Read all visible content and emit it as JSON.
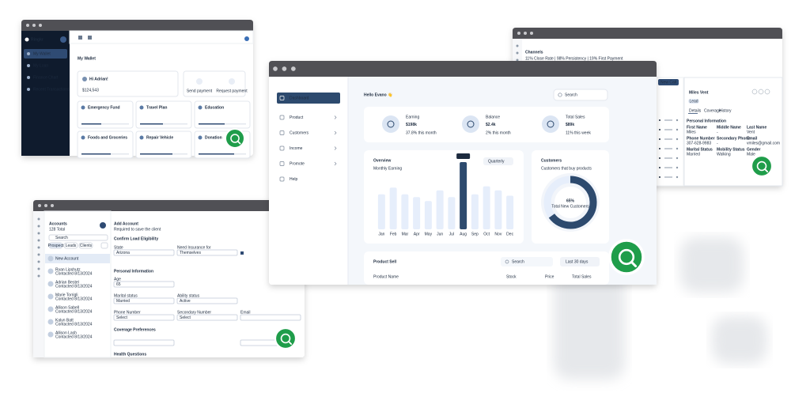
{
  "wallet_window": {
    "brand": "Ringkr",
    "nav": [
      "My Wallet",
      "My Loan",
      "Finance Chart",
      "Recent Transactions"
    ],
    "title": "My Wallet",
    "greeting": "Hi Adrian!",
    "balance": "$124,543",
    "actions": [
      "Send payment",
      "Request payment"
    ],
    "goals": [
      "Emergency Fund",
      "Travel Plan",
      "Education",
      "Foods and Groceries",
      "Repair Vehicle",
      "Donation"
    ]
  },
  "dashboard_window": {
    "nav": [
      "Dashboard",
      "Product",
      "Customers",
      "Income",
      "Promote",
      "Help"
    ],
    "greeting": "Hello Evano 👋",
    "search": "Search",
    "stats": [
      {
        "label": "Earning",
        "value": "$198k",
        "change": "37.8% this month"
      },
      {
        "label": "Balance",
        "value": "$2.4k",
        "change": "2% this month"
      },
      {
        "label": "Total Sales",
        "value": "$89k",
        "change": "11% this week"
      }
    ],
    "overview": {
      "type": "bar",
      "title": "Overview",
      "subtitle": "Monthly Earning",
      "period": "Quarterly",
      "categories": [
        "Jan",
        "Feb",
        "Mar",
        "Apr",
        "May",
        "Jun",
        "Jul",
        "Aug",
        "Sep",
        "Oct",
        "Nov",
        "Dec"
      ],
      "values": [
        2.6,
        3.1,
        2.6,
        2.4,
        2.1,
        2.9,
        2.4,
        5,
        2.6,
        3.2,
        2.9,
        2.5
      ],
      "value_labels": [
        null,
        null,
        null,
        null,
        null,
        null,
        null,
        "$5k",
        null,
        null,
        null,
        null
      ],
      "color": "#e6eefb",
      "highlight_color": "#2d4a6e"
    },
    "customers": {
      "type": "donut",
      "title": "Customers",
      "subtitle": "Customers that buy products",
      "value": 65,
      "value_label": "65%",
      "caption": "Total New Customers",
      "color": "#2d4a6e"
    },
    "product_sell": {
      "title": "Product Sell",
      "search": "Search",
      "period": "Last 30 days",
      "columns": [
        "Product Name",
        "Stock",
        "Price",
        "Total Sales"
      ]
    }
  },
  "accounts_window": {
    "title": "Accounts",
    "subtitle": "128 Total",
    "search": "Search",
    "filters": [
      "Prospect",
      "Leads",
      "Clients"
    ],
    "contacts": [
      {
        "name": "New Account",
        "note": null
      },
      {
        "name": "Ryan Lipshutz",
        "note": "Contacted 8/13/2024"
      },
      {
        "name": "Adrian Bestel",
        "note": "Contacted 8/13/2024"
      },
      {
        "name": "Marie Torrigli",
        "note": "Contacted 8/13/2024"
      },
      {
        "name": "Allison Sabell",
        "note": "Contacted 8/13/2024"
      },
      {
        "name": "Kalyn Batt",
        "note": "Contacted 8/13/2024"
      },
      {
        "name": "Allison Lash",
        "note": "Contacted 8/13/2024"
      }
    ],
    "form": {
      "title": "Add Account",
      "subtitle": "Required to save the client",
      "sections": [
        "Confirm Load Eligibility",
        "Personal Information",
        "Coverage Preferences",
        "Health Questions"
      ],
      "fields": [
        {
          "label": "State",
          "value": "Arizona"
        },
        {
          "label": "Need Insurance for",
          "value": "Themselves"
        },
        {
          "label": "Age",
          "value": "65"
        },
        {
          "label": "Marital status",
          "value": "Married"
        },
        {
          "label": "Ability status",
          "value": "Active"
        },
        {
          "label": "Phone Number",
          "value": "Select"
        },
        {
          "label": "Secondary Number",
          "value": "Select"
        },
        {
          "label": "Email",
          "value": null
        }
      ]
    }
  },
  "channels_window": {
    "title": "Channels",
    "subtitle": "11% Close Rate | 98% Persistency | 19% First Payment",
    "button": "New Call",
    "contact": {
      "name": "Miles Vent",
      "tag": "Lead",
      "tabs": [
        "Details",
        "Coverage",
        "History"
      ],
      "section": "Personal Information",
      "fields": [
        {
          "label": "First Name",
          "value": "Miles"
        },
        {
          "label": "Middle Name",
          "value": "-"
        },
        {
          "label": "Last Name",
          "value": "Vent"
        },
        {
          "label": "Phone Number",
          "value": "307-628-9983"
        },
        {
          "label": "Secondary Phone",
          "value": "-"
        },
        {
          "label": "Email",
          "value": "vmiles@gmail.com"
        },
        {
          "label": "Marital Status",
          "value": "Married"
        },
        {
          "label": "Mobility Status",
          "value": "Walking"
        },
        {
          "label": "Gender",
          "value": "Male"
        }
      ]
    }
  }
}
